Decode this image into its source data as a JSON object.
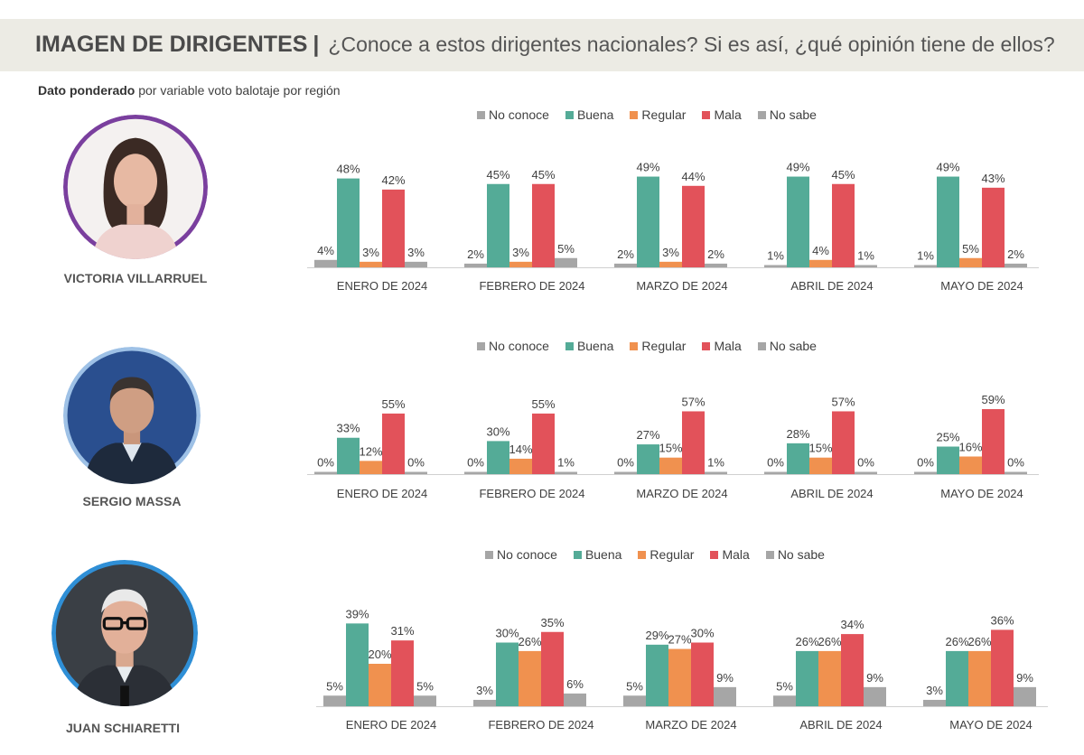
{
  "header": {
    "title": "IMAGEN DE DIRIGENTES",
    "separator": "|",
    "question": "¿Conoce a estos dirigentes nacionales? Si es así, ¿qué opinión tiene de ellos?"
  },
  "subtitle": {
    "bold": "Dato ponderado",
    "rest": " por variable voto balotaje por región"
  },
  "colors": {
    "No conoce": "#a6a6a6",
    "Buena": "#54ab97",
    "Regular": "#f0914f",
    "Mala": "#e2525a",
    "No sabe": "#a6a6a6"
  },
  "leaders": [
    {
      "name": "VICTORIA VILLARRUEL",
      "ring_color": "#7a3f9e"
    },
    {
      "name": "SERGIO MASSA",
      "ring_color": "#9ec1e6"
    },
    {
      "name": "JUAN SCHIARETTI",
      "ring_color": "#2f8fd6"
    }
  ],
  "chart_data": [
    {
      "type": "bar",
      "leader": "VICTORIA VILLARRUEL",
      "categories": [
        "ENERO DE 2024",
        "FEBRERO DE 2024",
        "MARZO  DE 2024",
        "ABRIL  DE 2024",
        "MAYO DE 2024"
      ],
      "series": [
        {
          "name": "No conoce",
          "values": [
            4,
            2,
            2,
            1,
            1
          ]
        },
        {
          "name": "Buena",
          "values": [
            48,
            45,
            49,
            49,
            49
          ]
        },
        {
          "name": "Regular",
          "values": [
            3,
            3,
            3,
            4,
            5
          ]
        },
        {
          "name": "Mala",
          "values": [
            42,
            45,
            44,
            45,
            43
          ]
        },
        {
          "name": "No sabe",
          "values": [
            3,
            5,
            2,
            1,
            2
          ]
        }
      ],
      "unit": "%",
      "legend": [
        "No conoce",
        "Buena",
        "Regular",
        "Mala",
        "No sabe"
      ],
      "legend_position": "top"
    },
    {
      "type": "bar",
      "leader": "SERGIO MASSA",
      "categories": [
        "ENERO DE 2024",
        "FEBRERO DE 2024",
        "MARZO DE 2024",
        "ABRIL DE 2024",
        "MAYO DE 2024"
      ],
      "series": [
        {
          "name": "No conoce",
          "values": [
            0,
            0,
            0,
            0,
            0
          ]
        },
        {
          "name": "Buena",
          "values": [
            33,
            30,
            27,
            28,
            25
          ]
        },
        {
          "name": "Regular",
          "values": [
            12,
            14,
            15,
            15,
            16
          ]
        },
        {
          "name": "Mala",
          "values": [
            55,
            55,
            57,
            57,
            59
          ]
        },
        {
          "name": "No sabe",
          "values": [
            0,
            1,
            1,
            0,
            0
          ]
        }
      ],
      "unit": "%",
      "legend": [
        "No conoce",
        "Buena",
        "Regular",
        "Mala",
        "No sabe"
      ],
      "legend_position": "top"
    },
    {
      "type": "bar",
      "leader": "JUAN SCHIARETTI",
      "categories": [
        "ENERO DE 2024",
        "FEBRERO DE 2024",
        "MARZO DE 2024",
        "ABRIL  DE 2024",
        "MAYO DE 2024"
      ],
      "series": [
        {
          "name": "No conoce",
          "values": [
            5,
            3,
            5,
            5,
            3
          ]
        },
        {
          "name": "Buena",
          "values": [
            39,
            30,
            29,
            26,
            26
          ]
        },
        {
          "name": "Regular",
          "values": [
            20,
            26,
            27,
            26,
            26
          ]
        },
        {
          "name": "Mala",
          "values": [
            31,
            35,
            30,
            34,
            36
          ]
        },
        {
          "name": "No sabe",
          "values": [
            5,
            6,
            9,
            9,
            9
          ]
        }
      ],
      "unit": "%",
      "legend": [
        "No conoce",
        "Buena",
        "Regular",
        "Mala",
        "No sabe"
      ],
      "legend_position": "top"
    }
  ]
}
